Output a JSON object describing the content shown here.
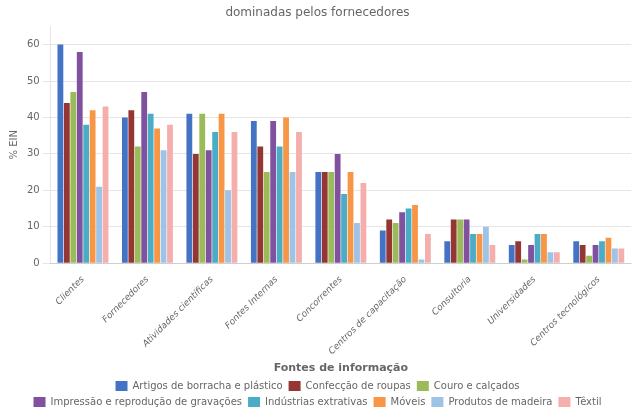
{
  "chart_data": {
    "type": "bar",
    "title": "dominadas pelos fornecedores",
    "xlabel": "Fontes de informação",
    "ylabel": "% EIN",
    "categories": [
      "Clientes",
      "Fornecedores",
      "Atividades científicas",
      "Fontes Internas",
      "Concorrentes",
      "Centros de capacitação",
      "Consultoria",
      "Universidades",
      "Centros tecnológicos"
    ],
    "series": [
      {
        "name": "Artigos de borracha e plástico",
        "color": "#4472C4",
        "values": [
          60,
          40,
          41,
          39,
          25,
          9,
          6,
          5,
          6
        ]
      },
      {
        "name": "Confecção de roupas",
        "color": "#943634",
        "values": [
          44,
          42,
          30,
          32,
          25,
          12,
          12,
          6,
          5
        ]
      },
      {
        "name": "Couro e calçados",
        "color": "#9BBB59",
        "values": [
          47,
          32,
          41,
          25,
          25,
          11,
          12,
          1,
          2
        ]
      },
      {
        "name": "Impressão e reprodução de gravações",
        "color": "#7F519F",
        "values": [
          58,
          47,
          31,
          39,
          30,
          14,
          12,
          5,
          5
        ]
      },
      {
        "name": "Indústrias extrativas",
        "color": "#4BACC6",
        "values": [
          38,
          41,
          36,
          32,
          19,
          15,
          8,
          8,
          6
        ]
      },
      {
        "name": "Móveis",
        "color": "#F79646",
        "values": [
          42,
          37,
          41,
          40,
          25,
          16,
          8,
          8,
          7
        ]
      },
      {
        "name": "Produtos de madeira",
        "color": "#9DC3E6",
        "values": [
          21,
          31,
          20,
          25,
          11,
          1,
          10,
          3,
          4
        ]
      },
      {
        "name": "Têxtil",
        "color": "#F4AEAC",
        "values": [
          43,
          38,
          36,
          36,
          22,
          8,
          5,
          3,
          4
        ]
      }
    ],
    "ylim": [
      0,
      65
    ],
    "yticks": [
      0,
      10,
      20,
      30,
      40,
      50,
      60
    ],
    "grid": true,
    "legend": "bottom"
  }
}
